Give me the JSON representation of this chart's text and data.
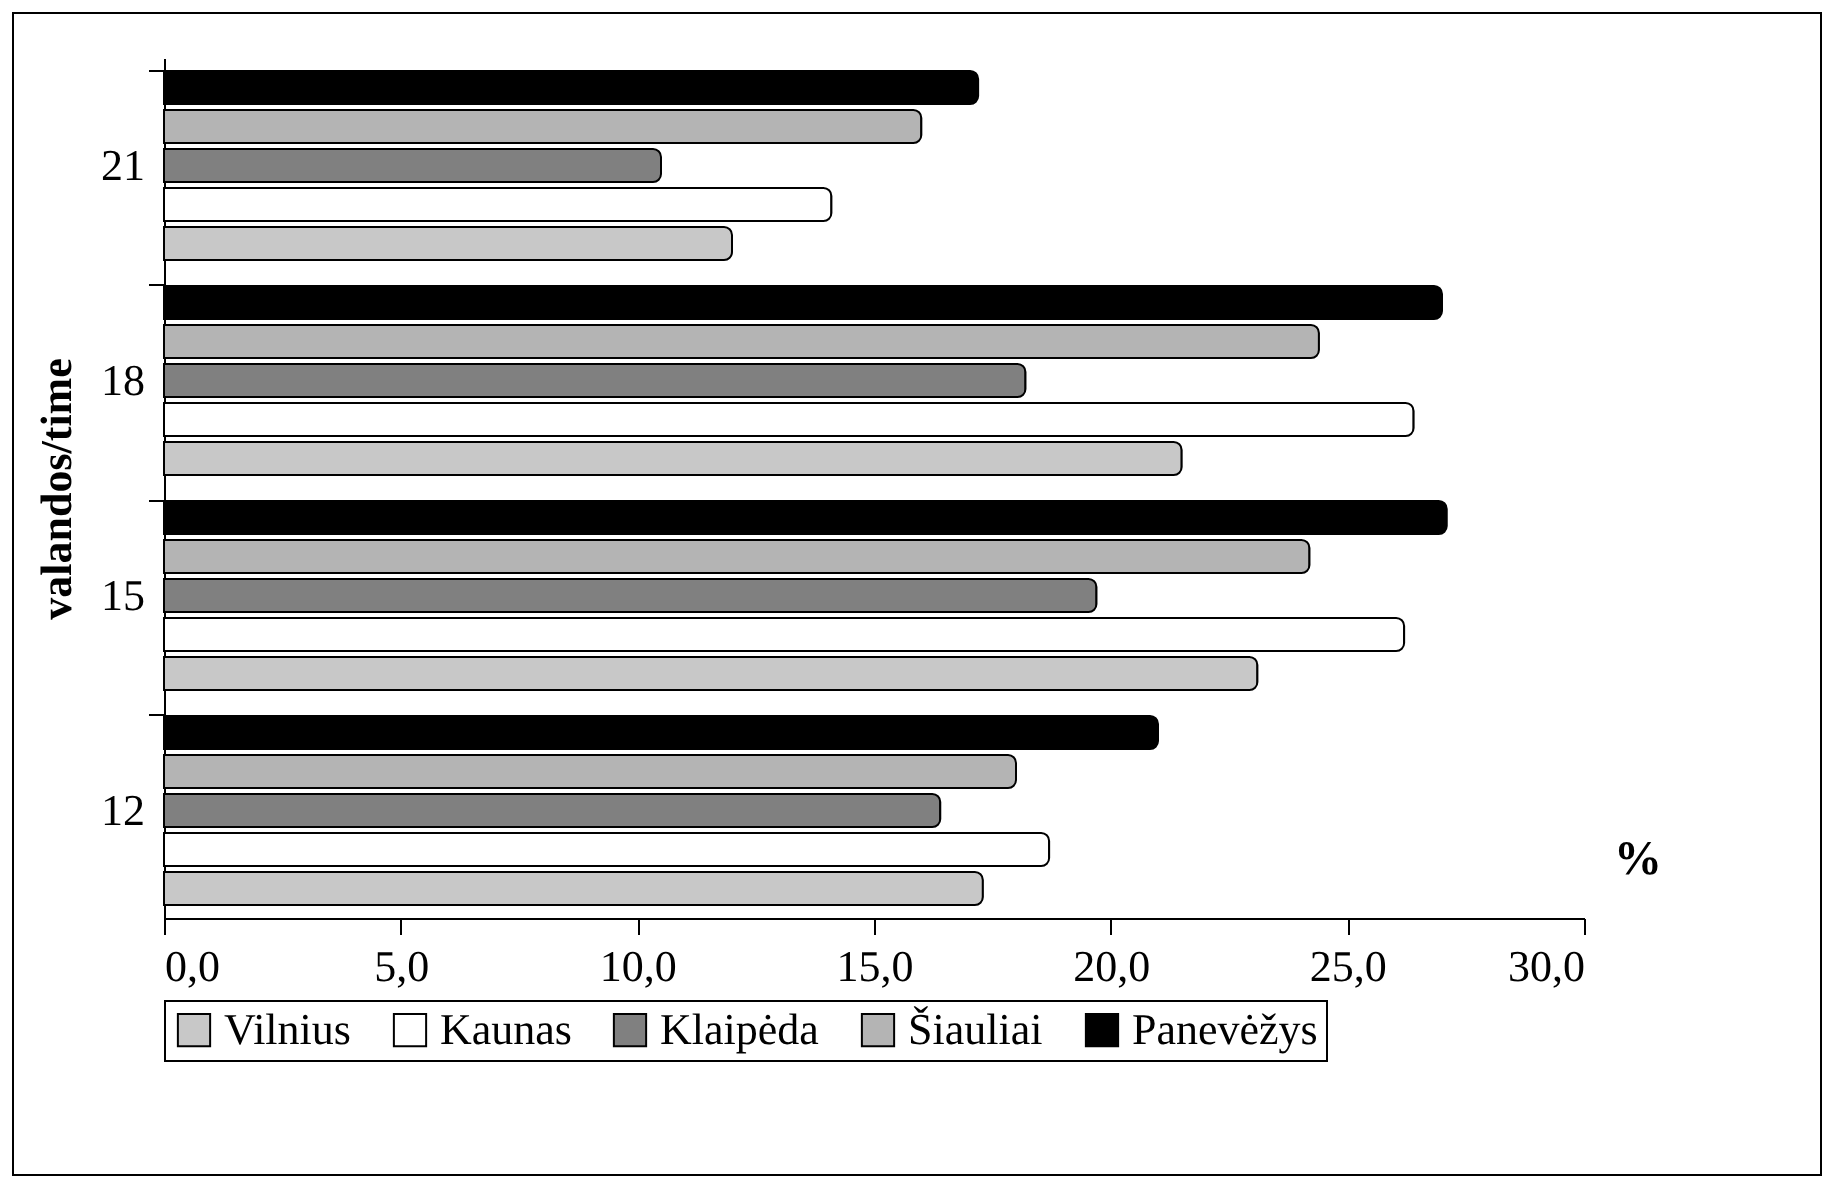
{
  "chart_data": {
    "type": "bar",
    "orientation": "horizontal",
    "ylabel": "valandos/time",
    "categories": [
      "21",
      "18",
      "15",
      "12"
    ],
    "series": [
      {
        "name": "Vilnius",
        "color": "#c8c8c8",
        "values": [
          12.0,
          21.5,
          23.1,
          17.3
        ]
      },
      {
        "name": "Kaunas",
        "color": "#ffffff",
        "values": [
          14.1,
          26.4,
          26.2,
          18.7
        ]
      },
      {
        "name": "Klaipėda",
        "color": "#808080",
        "values": [
          10.5,
          18.2,
          19.7,
          16.4
        ]
      },
      {
        "name": "Šiauliai",
        "color": "#b4b4b4",
        "values": [
          16.0,
          24.4,
          24.2,
          18.0
        ]
      },
      {
        "name": "Panevėžys",
        "color": "#000000",
        "values": [
          17.2,
          27.0,
          27.1,
          21.0
        ]
      }
    ],
    "xlim": [
      0,
      30
    ],
    "xticks": [
      {
        "value": 0,
        "label": "0,0"
      },
      {
        "value": 5,
        "label": "5,0"
      },
      {
        "value": 10,
        "label": "10,0"
      },
      {
        "value": 15,
        "label": "15,0"
      },
      {
        "value": 20,
        "label": "20,0"
      },
      {
        "value": 25,
        "label": "25,0"
      },
      {
        "value": 30,
        "label": "30,0"
      }
    ],
    "annotations": [
      "%"
    ],
    "legend": "bottom",
    "grid": false
  }
}
